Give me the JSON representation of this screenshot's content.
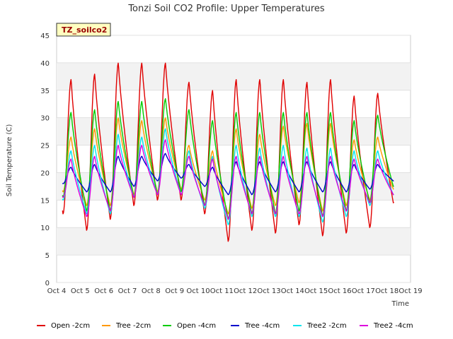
{
  "chart_data": {
    "type": "line",
    "title": "Tonzi Soil CO2 Profile: Upper Temperatures",
    "xlabel": "Time",
    "ylabel": "Soil Temperature (C)",
    "badge": "TZ_soilco2",
    "ylim": [
      0,
      45
    ],
    "yticks": [
      0,
      5,
      10,
      15,
      20,
      25,
      30,
      35,
      40,
      45
    ],
    "xlim": [
      4,
      19
    ],
    "xticks": [
      4,
      5,
      6,
      7,
      8,
      9,
      10,
      11,
      12,
      13,
      14,
      15,
      16,
      17,
      18,
      19
    ],
    "xtick_labels": [
      "Oct 4",
      "Oct 5",
      "Oct 6",
      "Oct 7",
      "Oct 8",
      "Oct 9",
      "Oct 10",
      "Oct 11",
      "Oct 12",
      "Oct 13",
      "Oct 14",
      "Oct 15",
      "Oct 16",
      "Oct 17",
      "Oct 18",
      "Oct 19"
    ],
    "grid": "horizontal bands",
    "legend_position": "bottom",
    "x_start": 4.25,
    "x_end": 18.3,
    "days": [
      4,
      5,
      6,
      7,
      8,
      9,
      10,
      11,
      12,
      13,
      14,
      15,
      16,
      17,
      18
    ],
    "series": [
      {
        "name": "Open -2cm",
        "color": "#e00000",
        "min": [
          12.5,
          9.5,
          11.5,
          14,
          15,
          15,
          12.5,
          7.5,
          9.5,
          9,
          10.5,
          8.5,
          9,
          10,
          14.5
        ],
        "max": [
          37,
          38,
          40,
          40,
          40,
          36.5,
          35,
          37,
          37,
          37,
          36.5,
          37,
          34,
          34.5
        ]
      },
      {
        "name": "Tree -2cm",
        "color": "#ff9900",
        "min": [
          16.5,
          14,
          14,
          16,
          16.5,
          17,
          15,
          12.5,
          13.5,
          14,
          14.5,
          13,
          14,
          15,
          17
        ],
        "max": [
          26.5,
          28,
          30,
          29.5,
          30,
          25,
          24,
          28,
          27,
          28.5,
          29,
          29,
          26,
          26.5
        ]
      },
      {
        "name": "Open -4cm",
        "color": "#00cc00",
        "min": [
          15.5,
          13,
          13,
          15.5,
          16,
          16.5,
          14,
          11.5,
          12.5,
          12.5,
          13,
          12,
          13,
          14.5,
          17.5
        ],
        "max": [
          31,
          31.5,
          33,
          33,
          33.5,
          31.5,
          29.5,
          31,
          31,
          31,
          31,
          31,
          29.5,
          30.5
        ]
      },
      {
        "name": "Tree -4cm",
        "color": "#0000cc",
        "min": [
          18,
          16.5,
          16.5,
          17.5,
          18.5,
          19,
          17.5,
          16,
          16,
          16.5,
          16.5,
          16.5,
          16.5,
          17,
          18.5
        ],
        "max": [
          21,
          21.5,
          23,
          23,
          23.5,
          21.5,
          21,
          22,
          22,
          22,
          22,
          22,
          21.5,
          21.5
        ]
      },
      {
        "name": "Tree2 -2cm",
        "color": "#00e5ee",
        "min": [
          15,
          12.5,
          12.5,
          15.5,
          16,
          16,
          13.5,
          10.5,
          12,
          12,
          12,
          11,
          12,
          14,
          16
        ],
        "max": [
          24,
          25,
          27,
          26.5,
          28,
          24,
          23,
          25,
          24.5,
          25,
          24.5,
          24.5,
          24,
          24
        ]
      },
      {
        "name": "Tree2 -4cm",
        "color": "#dd00dd",
        "min": [
          15.5,
          12,
          13,
          15.5,
          16,
          16,
          14,
          11.5,
          12.5,
          12.5,
          12.5,
          12,
          13,
          14.5,
          16
        ],
        "max": [
          22.5,
          23,
          25,
          25,
          26,
          23,
          22.5,
          23,
          23,
          23,
          23,
          23,
          22.5,
          22.5
        ]
      }
    ]
  }
}
